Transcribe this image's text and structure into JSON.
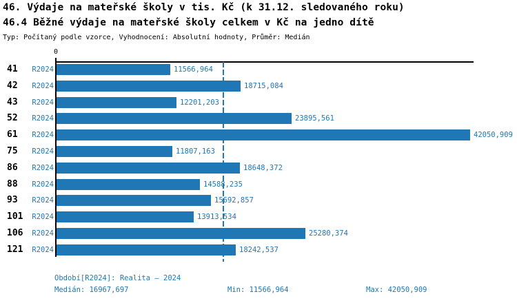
{
  "title_line1": "46. Výdaje na mateřské školy v tis. Kč (k 31.12. sledovaného roku)",
  "title_line2": "46.4 Běžné výdaje na mateřské školy celkem v Kč na jedno dítě",
  "subtitle": "Typ: Počítaný podle vzorce, Vyhodnocení: Absolutní hodnoty, Průměr: Medián",
  "colors": {
    "bar": "#2077B5",
    "text_blue": "#1F77B4",
    "axis": "#000000",
    "background": "#FFFFFF"
  },
  "chart_data": {
    "type": "bar",
    "orientation": "horizontal",
    "title": "46.4 Běžné výdaje na mateřské školy celkem v Kč na jedno dítě",
    "series_label": "R2024",
    "categories": [
      "41",
      "42",
      "43",
      "52",
      "61",
      "75",
      "86",
      "88",
      "93",
      "101",
      "106",
      "121"
    ],
    "values": [
      11566.964,
      18715.084,
      12201.203,
      23895.561,
      42050.909,
      11807.163,
      18648.372,
      14588.235,
      15692.857,
      13913.534,
      25280.374,
      18242.537
    ],
    "value_labels": [
      "11566,964",
      "18715,084",
      "12201,203",
      "23895,561",
      "42050,909",
      "11807,163",
      "18648,372",
      "14588,235",
      "15692,857",
      "13913,534",
      "25280,374",
      "18242,537"
    ],
    "axis_origin_label": "0",
    "xlim": [
      0,
      42050.909
    ],
    "median_line_value": 16967.697,
    "grid": "off",
    "legend": "none"
  },
  "footer": {
    "period": "Období[R2024]: Realita – 2024",
    "median": "Medián: 16967,697",
    "min": "Min: 11566,964",
    "max": "Max: 42050,909"
  }
}
